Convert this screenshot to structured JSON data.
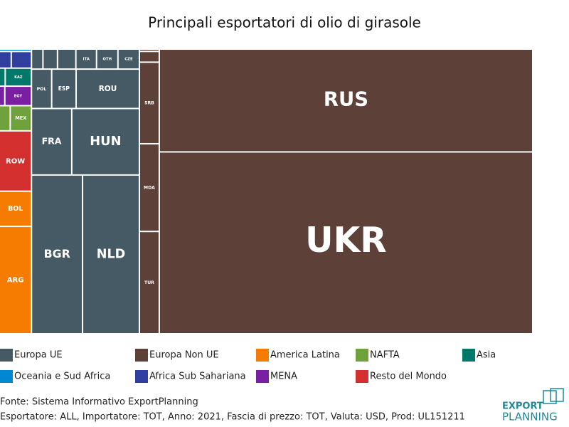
{
  "chart_data": {
    "type": "treemap",
    "title": "Principali esportatori di olio di girasole",
    "series": [
      {
        "name": "Europa UE",
        "color": "#465a65",
        "categories": [
          null,
          null,
          null,
          "ITA",
          "OTH",
          "CZE",
          "POL",
          "ESP",
          "ROU",
          "FRA",
          "HUN",
          "BGR",
          "NLD"
        ],
        "values": [
          0.15,
          0.19,
          0.24,
          0.27,
          0.28,
          0.28,
          0.52,
          0.63,
          1.63,
          1.75,
          2.94,
          5.3,
          5.9
        ]
      },
      {
        "name": "Europa Non UE",
        "color": "#5d4037",
        "categories": [
          null,
          null,
          "SRB",
          "MDA",
          "TUR",
          "RUS",
          "UKR"
        ],
        "values": [
          0.03,
          0.14,
          1.06,
          1.14,
          1.33,
          25.1,
          44.4
        ]
      },
      {
        "name": "America Latina",
        "color": "#f57c00",
        "categories": [
          "BOL",
          "ARG"
        ],
        "values": [
          0.74,
          2.26
        ]
      },
      {
        "name": "NAFTA",
        "color": "#6fa23c",
        "categories": [
          null,
          "MEX"
        ],
        "values": [
          0.18,
          0.35
        ]
      },
      {
        "name": "Asia",
        "color": "#00796b",
        "categories": [
          null,
          "KAZ"
        ],
        "values": [
          0.07,
          0.31
        ]
      },
      {
        "name": "Oceania e Sud Africa",
        "color": "#0288d1",
        "categories": [
          null
        ],
        "values": [
          0.05
        ]
      },
      {
        "name": "Africa Sub Sahariana",
        "color": "#303f9f",
        "categories": [
          null,
          null
        ],
        "values": [
          0.13,
          0.22
        ]
      },
      {
        "name": "MENA",
        "color": "#7b1fa2",
        "categories": [
          null,
          "EGY"
        ],
        "values": [
          0.07,
          0.34
        ]
      },
      {
        "name": "Resto del Mondo",
        "color": "#d32f2f",
        "categories": [
          "ROW"
        ],
        "values": [
          1.27
        ]
      }
    ]
  },
  "footer": {
    "source": "Fonte: Sistema Informativo ExportPlanning",
    "details": "Esportatore: ALL, Importatore: TOT, Anno: 2021, Fascia di prezzo: TOT, Valuta: USD, Prod: UL151211"
  },
  "logo": {
    "line1": "EXPORT",
    "line2": "PLANNING"
  }
}
